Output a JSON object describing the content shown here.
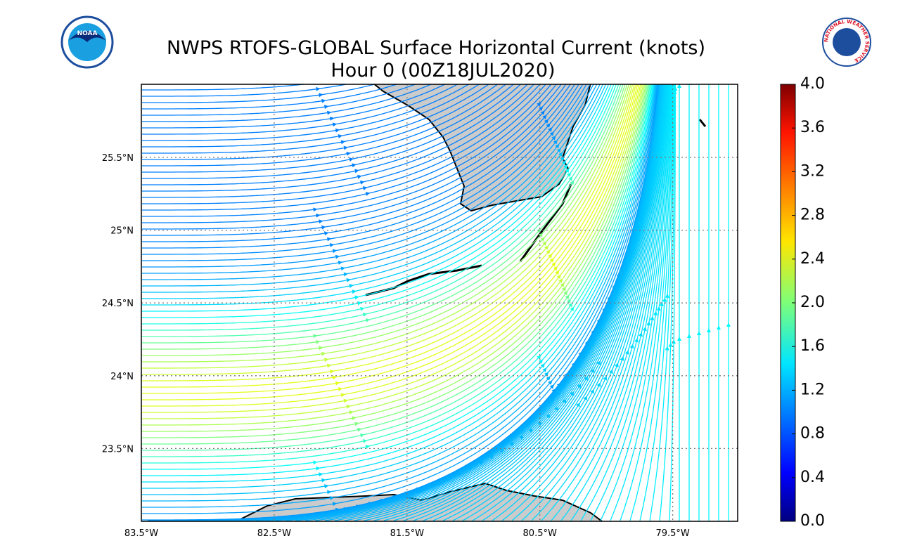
{
  "header": {
    "title": "NWPS RTOFS-GLOBAL Surface Horizontal Current (knots)",
    "subtitle": "Hour 0 (00Z18JUL2020)"
  },
  "logos": {
    "noaa": "NOAA",
    "nws": "NATIONAL WEATHER SERVICE"
  },
  "map": {
    "lat_labels": [
      "25.5°N",
      "25°N",
      "24.5°N",
      "24°N",
      "23.5°N"
    ],
    "lon_labels": [
      "83.5°W",
      "82.5°W",
      "81.5°W",
      "80.5°W",
      "79.5°W"
    ]
  },
  "colorbar": {
    "ticks": [
      "0.0",
      "0.4",
      "0.8",
      "1.2",
      "1.6",
      "2.0",
      "2.4",
      "2.8",
      "3.2",
      "3.6",
      "4.0"
    ]
  }
}
